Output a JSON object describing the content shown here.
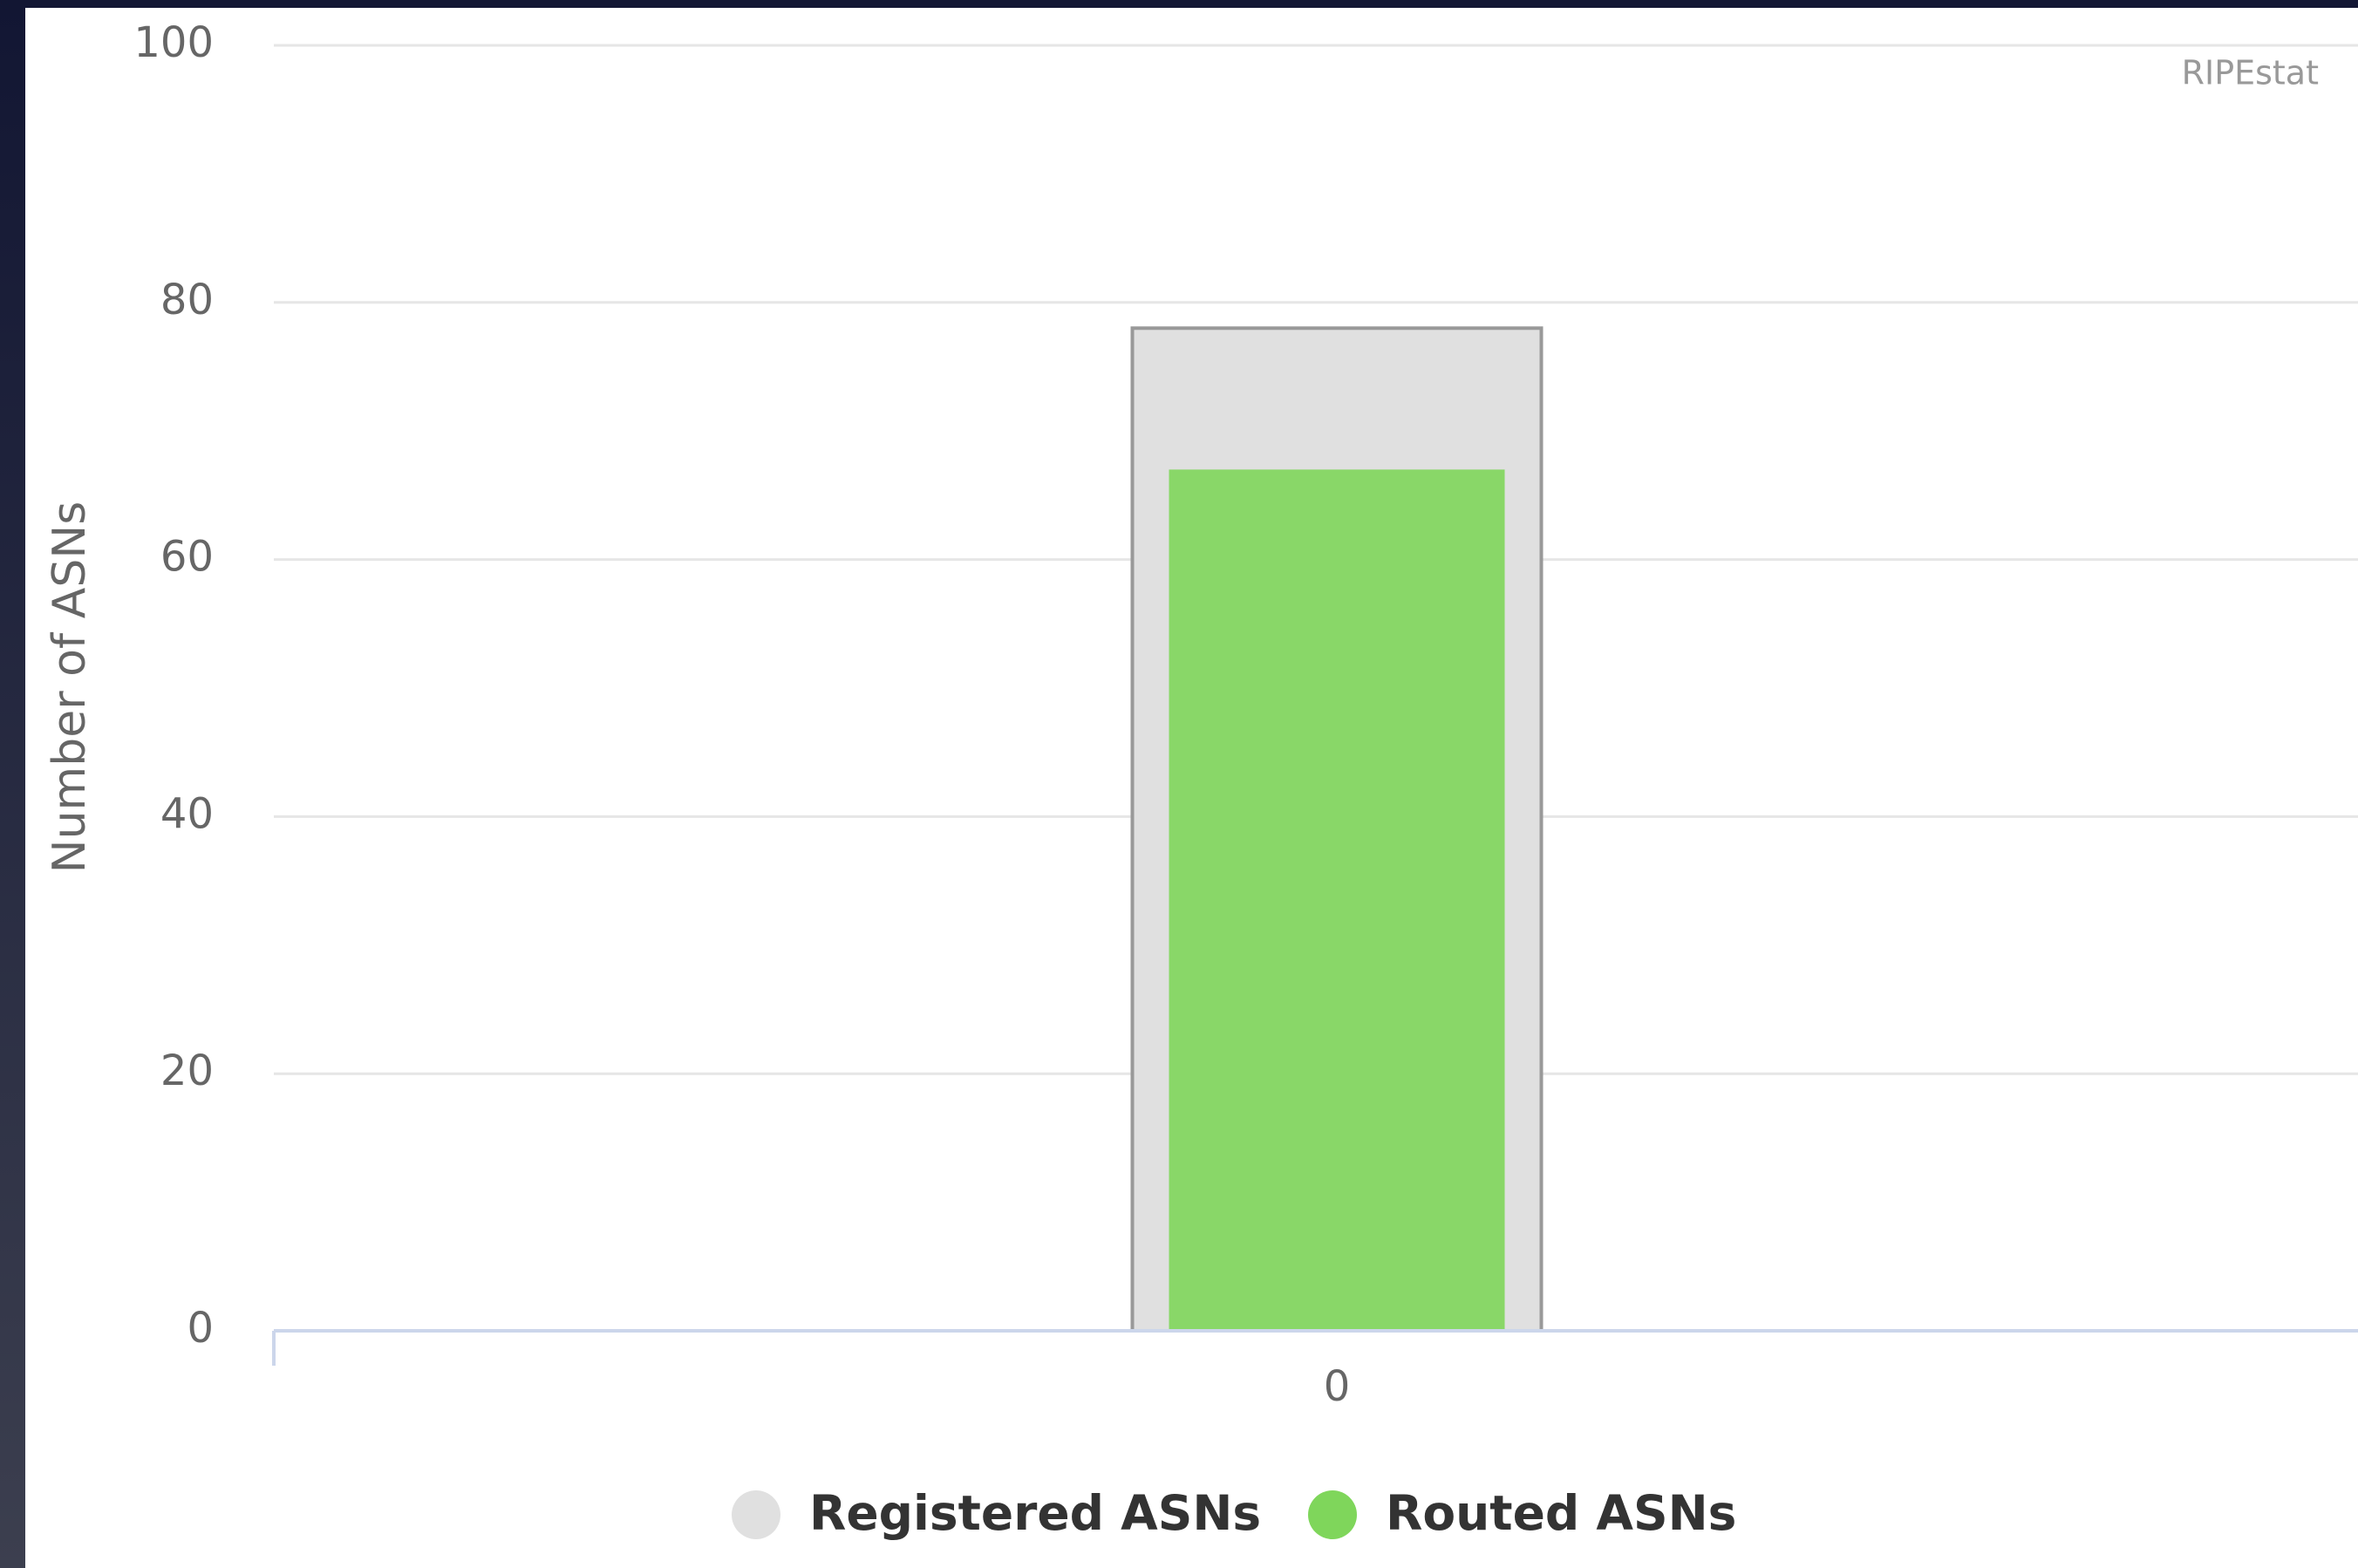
{
  "chart_data": {
    "type": "bar",
    "credits": "RIPEstat",
    "y_label": "Number of ASNs",
    "categories": [
      "0"
    ],
    "series": [
      {
        "name": "Registered ASNs",
        "color": "#e0e0e0",
        "values": [
          78
        ]
      },
      {
        "name": "Routed ASNs",
        "color": "#7fd65b",
        "values": [
          67
        ]
      }
    ],
    "ylim": [
      0,
      100
    ],
    "yticks": [
      0,
      20,
      40,
      60,
      80,
      100
    ],
    "grid": true,
    "legend": "bottom"
  }
}
